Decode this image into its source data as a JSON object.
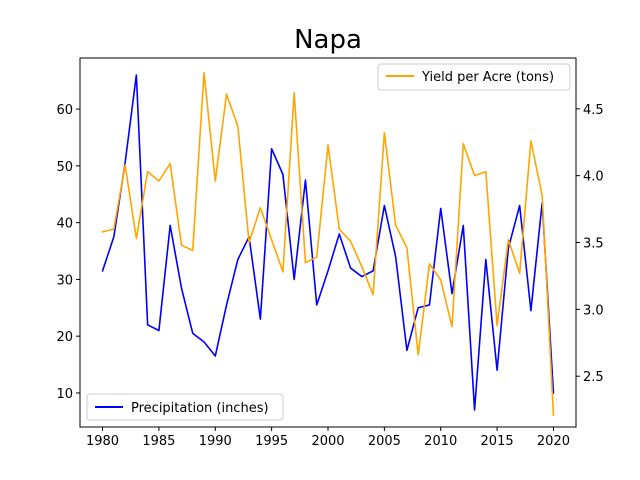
{
  "chart_data": {
    "type": "line",
    "title": "Napa",
    "x": [
      1980,
      1981,
      1982,
      1983,
      1984,
      1985,
      1986,
      1987,
      1988,
      1989,
      1990,
      1991,
      1992,
      1993,
      1994,
      1995,
      1996,
      1997,
      1998,
      1999,
      2000,
      2001,
      2002,
      2003,
      2004,
      2005,
      2006,
      2007,
      2008,
      2009,
      2010,
      2011,
      2012,
      2013,
      2014,
      2015,
      2016,
      2017,
      2018,
      2019,
      2020
    ],
    "xlim": [
      1978,
      2022
    ],
    "xticks": [
      1980,
      1985,
      1990,
      1995,
      2000,
      2005,
      2010,
      2015,
      2020
    ],
    "grid": false,
    "axes": {
      "left": {
        "ylim": [
          4.0,
          69.0
        ],
        "ticks": [
          10,
          20,
          30,
          40,
          50,
          60
        ]
      },
      "right": {
        "ylim": [
          2.12,
          4.88
        ],
        "ticks": [
          2.5,
          3.0,
          3.5,
          4.0,
          4.5
        ],
        "tick_labels": [
          "2.5",
          "3.0",
          "3.5",
          "4.0",
          "4.5"
        ]
      }
    },
    "series": [
      {
        "name": "Precipitation (inches)",
        "axis": "left",
        "color": "#0000ff",
        "legend_position": "lower-left",
        "values": [
          31.5,
          37.5,
          50.5,
          66.0,
          22.0,
          21.0,
          39.5,
          28.5,
          20.5,
          19.0,
          16.5,
          25.5,
          33.5,
          37.5,
          23.0,
          53.0,
          48.5,
          30.0,
          47.5,
          25.5,
          31.5,
          38.0,
          32.0,
          30.5,
          31.5,
          43.0,
          34.0,
          17.5,
          25.0,
          25.5,
          42.5,
          27.5,
          39.5,
          7.0,
          33.5,
          14.0,
          35.5,
          43.0,
          24.5,
          43.5,
          10.0
        ]
      },
      {
        "name": "Yield per Acre (tons)",
        "axis": "right",
        "color": "#ffa500",
        "legend_position": "upper-right",
        "values": [
          3.58,
          3.6,
          4.08,
          3.53,
          4.03,
          3.96,
          4.09,
          3.48,
          3.44,
          4.77,
          3.96,
          4.61,
          4.37,
          3.5,
          3.76,
          3.52,
          3.28,
          4.62,
          3.35,
          3.39,
          4.23,
          3.6,
          3.51,
          3.32,
          3.11,
          4.32,
          3.63,
          3.46,
          2.66,
          3.34,
          3.22,
          2.87,
          4.24,
          4.0,
          4.03,
          2.88,
          3.52,
          3.27,
          4.26,
          3.85,
          2.21
        ]
      }
    ]
  }
}
